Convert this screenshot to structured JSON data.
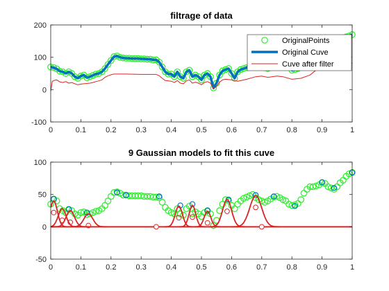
{
  "chart_data": [
    {
      "type": "line",
      "title": "filtrage of data",
      "xlabel": "",
      "ylabel": "",
      "xlim": [
        0,
        1
      ],
      "ylim": [
        -100,
        200
      ],
      "xticks": [
        "0",
        "0.1",
        "0.2",
        "0.3",
        "0.4",
        "0.5",
        "0.6",
        "0.7",
        "0.8",
        "0.9",
        "1"
      ],
      "yticks": [
        "-100",
        "0",
        "100",
        "200"
      ],
      "legend_position": "top-right",
      "colors": {
        "original_points": "#33ee33",
        "original_curve": "#0072bd",
        "filtered": "#dd2222"
      },
      "series": [
        {
          "name": "OriginalPoints",
          "style": "markers",
          "x": [
            0,
            0.01,
            0.02,
            0.03,
            0.04,
            0.05,
            0.06,
            0.07,
            0.08,
            0.09,
            0.1,
            0.11,
            0.12,
            0.13,
            0.14,
            0.15,
            0.16,
            0.17,
            0.18,
            0.19,
            0.2,
            0.21,
            0.22,
            0.23,
            0.24,
            0.25,
            0.26,
            0.27,
            0.28,
            0.29,
            0.3,
            0.31,
            0.32,
            0.33,
            0.34,
            0.35,
            0.36,
            0.37,
            0.38,
            0.39,
            0.4,
            0.41,
            0.42,
            0.43,
            0.44,
            0.45,
            0.46,
            0.47,
            0.48,
            0.49,
            0.5,
            0.51,
            0.52,
            0.53,
            0.54,
            0.55,
            0.56,
            0.57,
            0.58,
            0.59,
            0.6,
            0.61,
            0.62,
            0.63,
            0.64,
            0.65,
            0.66,
            0.67,
            0.68,
            0.69,
            0.7,
            0.71,
            0.72,
            0.73,
            0.74,
            0.75,
            0.76,
            0.77,
            0.78,
            0.79,
            0.8,
            0.81,
            0.82,
            0.83,
            0.84,
            0.85,
            0.86,
            0.87,
            0.88,
            0.89,
            0.9,
            0.91,
            0.92,
            0.93,
            0.94,
            0.95,
            0.96,
            0.97,
            0.98,
            0.99,
            1.0
          ],
          "y": [
            70,
            68,
            64,
            57,
            55,
            50,
            55,
            50,
            40,
            35,
            42,
            45,
            37,
            40,
            44,
            48,
            50,
            55,
            65,
            78,
            90,
            102,
            104,
            100,
            98,
            97,
            97,
            96,
            96,
            96,
            95,
            95,
            94,
            94,
            92,
            92,
            85,
            70,
            55,
            48,
            48,
            40,
            55,
            40,
            35,
            55,
            60,
            40,
            45,
            40,
            30,
            45,
            50,
            40,
            5,
            20,
            45,
            58,
            62,
            65,
            50,
            35,
            55,
            62,
            65,
            68,
            72,
            80,
            84,
            82,
            76,
            68,
            65,
            70,
            78,
            82,
            85,
            82,
            80,
            72,
            60,
            62,
            65,
            72,
            82,
            98,
            112,
            122,
            126,
            130,
            128,
            132,
            135,
            140,
            145,
            148,
            155,
            160,
            163,
            166,
            170
          ]
        },
        {
          "name": "Original Cuve",
          "style": "line",
          "x": [
            0,
            0.01,
            0.02,
            0.03,
            0.04,
            0.05,
            0.06,
            0.07,
            0.08,
            0.09,
            0.1,
            0.11,
            0.12,
            0.13,
            0.14,
            0.15,
            0.16,
            0.17,
            0.18,
            0.19,
            0.2,
            0.21,
            0.22,
            0.23,
            0.24,
            0.25,
            0.26,
            0.27,
            0.28,
            0.29,
            0.3,
            0.31,
            0.32,
            0.33,
            0.34,
            0.35,
            0.36,
            0.37,
            0.38,
            0.39,
            0.4,
            0.41,
            0.42,
            0.43,
            0.44,
            0.45,
            0.46,
            0.47,
            0.48,
            0.49,
            0.5,
            0.51,
            0.52,
            0.53,
            0.54,
            0.55,
            0.56,
            0.57,
            0.58,
            0.59,
            0.6,
            0.61,
            0.62,
            0.63,
            0.64,
            0.65,
            0.66,
            0.67,
            0.68,
            0.69,
            0.7,
            0.71,
            0.72,
            0.73,
            0.74,
            0.75,
            0.76,
            0.77,
            0.78,
            0.79,
            0.8,
            0.81,
            0.82,
            0.83,
            0.84,
            0.85,
            0.86,
            0.87,
            0.88,
            0.89,
            0.9,
            0.91,
            0.92,
            0.93,
            0.94,
            0.95,
            0.96,
            0.97,
            0.98,
            0.99,
            1.0
          ],
          "y": [
            70,
            68,
            64,
            57,
            55,
            50,
            55,
            50,
            40,
            35,
            42,
            45,
            37,
            40,
            44,
            48,
            50,
            55,
            65,
            78,
            90,
            102,
            104,
            100,
            98,
            97,
            97,
            96,
            96,
            96,
            95,
            95,
            94,
            94,
            92,
            92,
            85,
            70,
            55,
            48,
            48,
            40,
            55,
            40,
            35,
            55,
            60,
            40,
            45,
            40,
            30,
            45,
            50,
            40,
            5,
            20,
            45,
            58,
            62,
            65,
            50,
            35,
            55,
            62,
            65,
            68,
            72,
            80,
            84,
            82,
            76,
            68,
            65,
            70,
            78,
            82,
            85,
            82,
            80,
            72,
            60,
            62,
            65,
            72,
            82,
            98,
            112,
            122,
            126,
            130,
            128,
            132,
            135,
            140,
            145,
            148,
            155,
            160,
            163,
            166,
            170
          ]
        },
        {
          "name": "Cuve after filter",
          "style": "thin-line",
          "x": [
            0,
            0.005,
            0.01,
            0.02,
            0.03,
            0.04,
            0.05,
            0.06,
            0.07,
            0.08,
            0.09,
            0.1,
            0.11,
            0.12,
            0.13,
            0.14,
            0.15,
            0.16,
            0.17,
            0.18,
            0.19,
            0.2,
            0.21,
            0.22,
            0.25,
            0.3,
            0.35,
            0.36,
            0.37,
            0.38,
            0.4,
            0.41,
            0.42,
            0.43,
            0.44,
            0.45,
            0.46,
            0.47,
            0.48,
            0.49,
            0.5,
            0.51,
            0.52,
            0.53,
            0.54,
            0.55,
            0.56,
            0.57,
            0.58,
            0.6,
            0.62,
            0.65,
            0.68,
            0.7,
            0.72,
            0.75,
            0.77,
            0.8,
            0.83,
            0.86,
            0.88,
            0.9,
            0.93,
            0.95,
            0.97,
            1.0
          ],
          "y": [
            -5,
            25,
            28,
            30,
            24,
            22,
            25,
            20,
            22,
            18,
            15,
            17,
            18,
            19,
            20,
            22,
            25,
            27,
            30,
            38,
            43,
            46,
            48,
            48,
            48,
            47,
            47,
            43,
            35,
            28,
            26,
            22,
            28,
            20,
            18,
            27,
            30,
            20,
            23,
            20,
            15,
            22,
            25,
            20,
            2,
            10,
            23,
            30,
            32,
            30,
            26,
            32,
            40,
            42,
            38,
            42,
            40,
            32,
            35,
            45,
            60,
            62,
            68,
            72,
            76,
            82
          ]
        }
      ]
    },
    {
      "type": "line",
      "title": "9 Gaussian models to fit this cuve",
      "xlabel": "",
      "ylabel": "",
      "xlim": [
        0,
        1
      ],
      "ylim": [
        -50,
        100
      ],
      "xticks": [
        "0",
        "0.1",
        "0.2",
        "0.3",
        "0.4",
        "0.5",
        "0.6",
        "0.7",
        "0.8",
        "0.9",
        "1"
      ],
      "yticks": [
        "-50",
        "0",
        "50",
        "100"
      ],
      "colors": {
        "points": "#33ee33",
        "peak_markers": "#0072bd",
        "models": "#dd2222"
      },
      "series": [
        {
          "name": "",
          "style": "markers",
          "x": [
            0,
            0.01,
            0.02,
            0.03,
            0.04,
            0.05,
            0.06,
            0.07,
            0.08,
            0.09,
            0.1,
            0.11,
            0.12,
            0.13,
            0.14,
            0.15,
            0.16,
            0.17,
            0.18,
            0.19,
            0.2,
            0.21,
            0.22,
            0.23,
            0.24,
            0.25,
            0.26,
            0.27,
            0.28,
            0.29,
            0.3,
            0.31,
            0.32,
            0.33,
            0.34,
            0.35,
            0.36,
            0.37,
            0.38,
            0.39,
            0.4,
            0.41,
            0.42,
            0.43,
            0.44,
            0.45,
            0.46,
            0.47,
            0.48,
            0.49,
            0.5,
            0.51,
            0.52,
            0.53,
            0.54,
            0.55,
            0.56,
            0.57,
            0.58,
            0.59,
            0.6,
            0.61,
            0.62,
            0.63,
            0.64,
            0.65,
            0.66,
            0.67,
            0.68,
            0.69,
            0.7,
            0.71,
            0.72,
            0.73,
            0.74,
            0.75,
            0.76,
            0.77,
            0.78,
            0.79,
            0.8,
            0.81,
            0.82,
            0.83,
            0.84,
            0.85,
            0.86,
            0.87,
            0.88,
            0.89,
            0.9,
            0.91,
            0.92,
            0.93,
            0.94,
            0.95,
            0.96,
            0.97,
            0.98,
            0.99,
            1.0
          ],
          "y": [
            35,
            43,
            40,
            28,
            25,
            22,
            27,
            25,
            20,
            18,
            22,
            23,
            19,
            20,
            22,
            24,
            25,
            28,
            33,
            40,
            47,
            53,
            54,
            52,
            49,
            49,
            48,
            48,
            48,
            48,
            48,
            47,
            47,
            47,
            46,
            46,
            45,
            38,
            30,
            25,
            22,
            20,
            28,
            20,
            18,
            28,
            32,
            20,
            23,
            20,
            16,
            22,
            25,
            20,
            2,
            10,
            25,
            35,
            42,
            40,
            33,
            28,
            35,
            40,
            44,
            46,
            48,
            50,
            45,
            42,
            40,
            38,
            40,
            43,
            46,
            47,
            45,
            42,
            40,
            35,
            33,
            34,
            36,
            42,
            52,
            58,
            62,
            62,
            63,
            65,
            68,
            67,
            62,
            60,
            58,
            62,
            68,
            72,
            78,
            82,
            84
          ]
        },
        {
          "name": "",
          "style": "peak-markers",
          "x": [
            0.01,
            0.06,
            0.12,
            0.22,
            0.25,
            0.36,
            0.43,
            0.47,
            0.52,
            0.59,
            0.68,
            0.74,
            0.81,
            0.9,
            0.94,
            1.0
          ],
          "y": [
            43,
            27,
            22,
            53,
            49,
            47,
            33,
            35,
            25,
            42,
            49,
            47,
            32,
            69,
            60,
            84
          ]
        },
        {
          "name": "",
          "style": "gaussians",
          "peaks": [
            {
              "center": 0.01,
              "amplitude": 40,
              "width": 0.012
            },
            {
              "center": 0.038,
              "amplitude": 28,
              "width": 0.013
            },
            {
              "center": 0.065,
              "amplitude": 25,
              "width": 0.014
            },
            {
              "center": 0.125,
              "amplitude": 20,
              "width": 0.015
            },
            {
              "center": 0.425,
              "amplitude": 32,
              "width": 0.012
            },
            {
              "center": 0.47,
              "amplitude": 33,
              "width": 0.011
            },
            {
              "center": 0.52,
              "amplitude": 24,
              "width": 0.011
            },
            {
              "center": 0.585,
              "amplitude": 42,
              "width": 0.015
            },
            {
              "center": 0.68,
              "amplitude": 48,
              "width": 0.02
            }
          ]
        },
        {
          "name": "",
          "style": "hollow-markers",
          "x": [
            0.35,
            0.7
          ],
          "y": [
            0,
            0
          ]
        }
      ]
    }
  ]
}
